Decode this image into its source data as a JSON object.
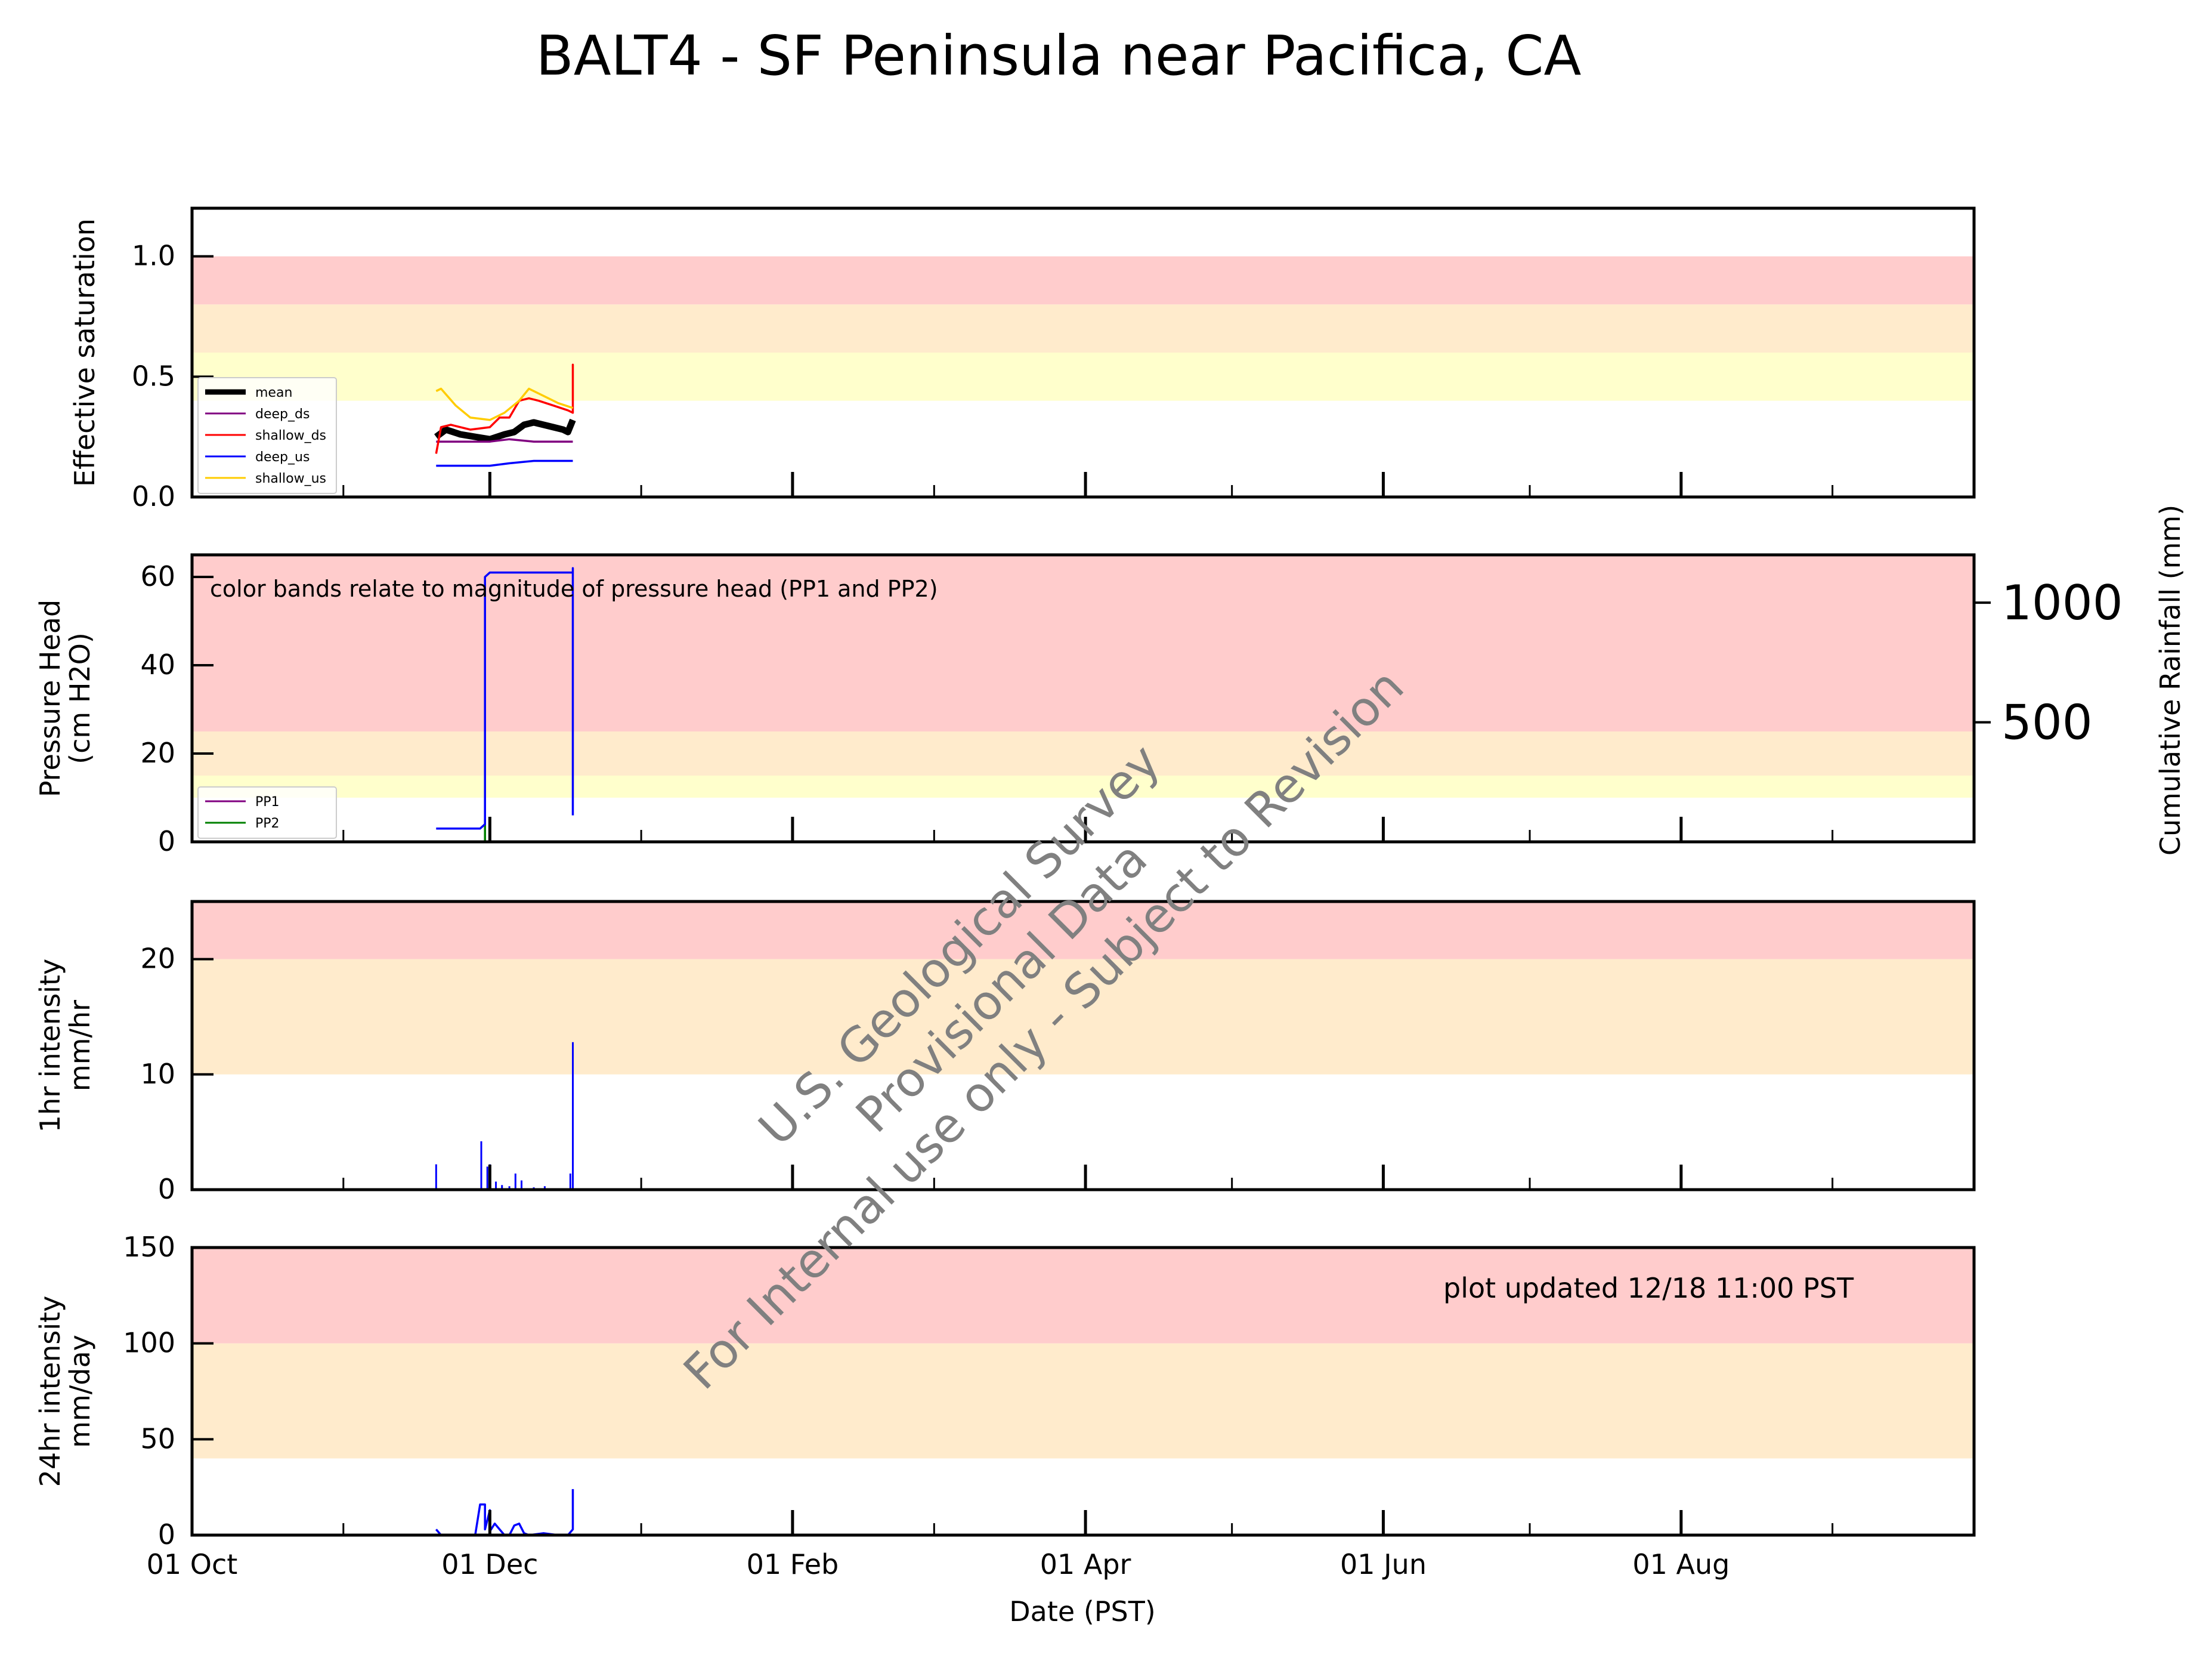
{
  "title": "BALT4 - SF Peninsula near Pacifica, CA",
  "xaxis": {
    "label": "Date (PST)",
    "ticks": [
      "01 Oct",
      "01 Dec",
      "01 Feb",
      "01 Apr",
      "01 Jun",
      "01 Aug"
    ]
  },
  "watermark": {
    "lines": [
      "U.S. Geological Survey",
      "Provisional Data",
      "For Internal use only - Subject to Revision"
    ],
    "color": "#808080"
  },
  "annotations": {
    "pressure_note": "color bands relate to magnitude of pressure head (PP1 and PP2)",
    "updated": "plot updated 12/18 11:00  PST"
  },
  "colors": {
    "red_band": "#ffcccc",
    "orange_band": "#ffebcc",
    "yellow_band": "#ffffcc"
  },
  "chart_data": [
    {
      "type": "line",
      "ylabel": [
        "Effective saturation"
      ],
      "ylim": [
        0,
        1.2
      ],
      "yticks": [
        "0.0",
        "0.5",
        "1.0"
      ],
      "bands": [
        {
          "from": 0.8,
          "to": 1.0,
          "color": "red"
        },
        {
          "from": 0.6,
          "to": 0.8,
          "color": "orange"
        },
        {
          "from": 0.4,
          "to": 0.6,
          "color": "yellow"
        }
      ],
      "legend_position": "bottom-left",
      "series": [
        {
          "name": "mean",
          "color": "#000000",
          "width": 3,
          "x": [
            "2023-11-20",
            "2023-11-22",
            "2023-11-25",
            "2023-11-28",
            "2023-12-01",
            "2023-12-04",
            "2023-12-06",
            "2023-12-08",
            "2023-12-10",
            "2023-12-12",
            "2023-12-14",
            "2023-12-16",
            "2023-12-17",
            "2023-12-18"
          ],
          "y": [
            0.25,
            0.28,
            0.26,
            0.25,
            0.24,
            0.26,
            0.27,
            0.3,
            0.31,
            0.3,
            0.29,
            0.28,
            0.27,
            0.32
          ]
        },
        {
          "name": "deep_ds",
          "color": "#800080",
          "width": 1,
          "x": [
            "2023-11-20",
            "2023-11-25",
            "2023-12-01",
            "2023-12-05",
            "2023-12-10",
            "2023-12-15",
            "2023-12-18"
          ],
          "y": [
            0.23,
            0.23,
            0.23,
            0.24,
            0.23,
            0.23,
            0.23
          ]
        },
        {
          "name": "shallow_ds",
          "color": "#ff0000",
          "width": 1,
          "x": [
            "2023-11-20",
            "2023-11-21",
            "2023-11-23",
            "2023-11-27",
            "2023-12-01",
            "2023-12-03",
            "2023-12-05",
            "2023-12-07",
            "2023-12-09",
            "2023-12-11",
            "2023-12-14",
            "2023-12-17",
            "2023-12-18",
            "2023-12-18",
            "2023-12-18"
          ],
          "y": [
            0.18,
            0.29,
            0.3,
            0.28,
            0.29,
            0.33,
            0.33,
            0.4,
            0.41,
            0.4,
            0.38,
            0.36,
            0.35,
            0.55,
            0.35
          ]
        },
        {
          "name": "deep_us",
          "color": "#0000ff",
          "width": 1,
          "x": [
            "2023-11-20",
            "2023-11-25",
            "2023-12-01",
            "2023-12-05",
            "2023-12-10",
            "2023-12-15",
            "2023-12-18"
          ],
          "y": [
            0.13,
            0.13,
            0.13,
            0.14,
            0.15,
            0.15,
            0.15
          ]
        },
        {
          "name": "shallow_us",
          "color": "#ffcc00",
          "width": 1,
          "x": [
            "2023-11-20",
            "2023-11-21",
            "2023-11-24",
            "2023-11-27",
            "2023-12-01",
            "2023-12-04",
            "2023-12-07",
            "2023-12-09",
            "2023-12-12",
            "2023-12-15",
            "2023-12-18"
          ],
          "y": [
            0.44,
            0.45,
            0.38,
            0.33,
            0.32,
            0.35,
            0.4,
            0.45,
            0.42,
            0.39,
            0.37
          ]
        }
      ]
    },
    {
      "type": "line",
      "ylabel": [
        "Pressure Head",
        "(cm H2O)"
      ],
      "ylim": [
        0,
        65
      ],
      "yticks": [
        "0",
        "20",
        "40",
        "60"
      ],
      "bands": [
        {
          "from": 25,
          "to": 65,
          "color": "red"
        },
        {
          "from": 15,
          "to": 25,
          "color": "orange"
        },
        {
          "from": 10,
          "to": 15,
          "color": "yellow"
        }
      ],
      "legend_position": "bottom-left",
      "secondary_axis": {
        "label": "Cumulative Rainfall (mm)",
        "ticks": [
          "500",
          "1000"
        ],
        "ylim": [
          0,
          1200
        ]
      },
      "series": [
        {
          "name": "PP1",
          "color": "#800080",
          "x": [],
          "y": []
        },
        {
          "name": "PP2",
          "color": "#008000",
          "x": [
            "2023-11-30",
            "2023-11-30",
            "2023-11-30"
          ],
          "y": [
            0,
            5,
            0
          ]
        },
        {
          "name": "",
          "color": "#0000ff",
          "x": [
            "2023-11-20",
            "2023-11-25",
            "2023-11-29",
            "2023-11-30",
            "2023-11-30",
            "2023-12-01",
            "2023-12-05",
            "2023-12-10",
            "2023-12-15",
            "2023-12-18",
            "2023-12-18",
            "2023-12-18"
          ],
          "y": [
            3,
            3,
            3,
            4,
            60,
            61,
            61,
            61,
            61,
            61,
            62,
            6
          ]
        }
      ]
    },
    {
      "type": "bar",
      "ylabel": [
        "1hr intensity",
        "mm/hr"
      ],
      "ylim": [
        0,
        25
      ],
      "yticks": [
        "0",
        "10",
        "20"
      ],
      "bands": [
        {
          "from": 20,
          "to": 25,
          "color": "red"
        },
        {
          "from": 10,
          "to": 20,
          "color": "orange"
        }
      ],
      "series": [
        {
          "name": "",
          "color": "#0000ff",
          "x": [
            "2023-11-20",
            "2023-11-29",
            "2023-11-30",
            "2023-12-01",
            "2023-12-02",
            "2023-12-03",
            "2023-12-05",
            "2023-12-06",
            "2023-12-07",
            "2023-12-10",
            "2023-12-12",
            "2023-12-17",
            "2023-12-18"
          ],
          "y": [
            2.2,
            4.2,
            2.0,
            2.2,
            0.7,
            0.4,
            0.3,
            1.4,
            0.8,
            0.2,
            0.3,
            1.4,
            12.8
          ]
        }
      ]
    },
    {
      "type": "line",
      "ylabel": [
        "24hr intensity",
        "mm/day"
      ],
      "ylim": [
        0,
        150
      ],
      "yticks": [
        "0",
        "50",
        "100",
        "150"
      ],
      "bands": [
        {
          "from": 100,
          "to": 150,
          "color": "red"
        },
        {
          "from": 40,
          "to": 100,
          "color": "orange"
        }
      ],
      "series": [
        {
          "name": "",
          "color": "#0000ff",
          "x": [
            "2023-11-20",
            "2023-11-21",
            "2023-11-28",
            "2023-11-29",
            "2023-11-30",
            "2023-11-30",
            "2023-12-01",
            "2023-12-01",
            "2023-12-02",
            "2023-12-03",
            "2023-12-04",
            "2023-12-05",
            "2023-12-06",
            "2023-12-07",
            "2023-12-08",
            "2023-12-09",
            "2023-12-12",
            "2023-12-15",
            "2023-12-17",
            "2023-12-18",
            "2023-12-18"
          ],
          "y": [
            3,
            0,
            0,
            16,
            16,
            3,
            13,
            2,
            6,
            3,
            0,
            0,
            5,
            6,
            1,
            0,
            1,
            0,
            0,
            3,
            24
          ]
        }
      ]
    }
  ]
}
